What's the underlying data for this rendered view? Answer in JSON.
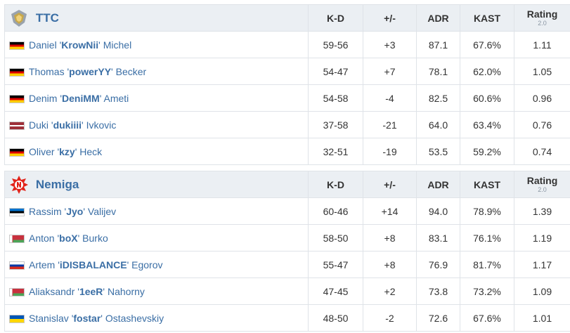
{
  "columns": {
    "kd": "K-D",
    "plus_minus": "+/-",
    "adr": "ADR",
    "kast": "KAST",
    "rating": "Rating",
    "rating_version": "2.0"
  },
  "teams": [
    {
      "name": "TTC",
      "logo_icon": "ttc-logo-icon",
      "players": [
        {
          "first": "Daniel",
          "nick": "KrowNii",
          "last": "Michel",
          "flag": "de",
          "kd": "59-56",
          "pm": "+3",
          "pm_sign": "pos",
          "adr": "87.1",
          "kast": "67.6%",
          "rating": "1.11"
        },
        {
          "first": "Thomas",
          "nick": "powerYY",
          "last": "Becker",
          "flag": "de",
          "kd": "54-47",
          "pm": "+7",
          "pm_sign": "pos",
          "adr": "78.1",
          "kast": "62.0%",
          "rating": "1.05"
        },
        {
          "first": "Denim",
          "nick": "DeniMM",
          "last": "Ameti",
          "flag": "de",
          "kd": "54-58",
          "pm": "-4",
          "pm_sign": "neg",
          "adr": "82.5",
          "kast": "60.6%",
          "rating": "0.96"
        },
        {
          "first": "Duki",
          "nick": "dukiiii",
          "last": "Ivkovic",
          "flag": "lv",
          "kd": "37-58",
          "pm": "-21",
          "pm_sign": "neg",
          "adr": "64.0",
          "kast": "63.4%",
          "rating": "0.76"
        },
        {
          "first": "Oliver",
          "nick": "kzy",
          "last": "Heck",
          "flag": "de",
          "kd": "32-51",
          "pm": "-19",
          "pm_sign": "neg",
          "adr": "53.5",
          "kast": "59.2%",
          "rating": "0.74"
        }
      ]
    },
    {
      "name": "Nemiga",
      "logo_icon": "nemiga-logo-icon",
      "players": [
        {
          "first": "Rassim",
          "nick": "Jyo",
          "last": "Valijev",
          "flag": "ee",
          "kd": "60-46",
          "pm": "+14",
          "pm_sign": "pos",
          "adr": "94.0",
          "kast": "78.9%",
          "rating": "1.39"
        },
        {
          "first": "Anton",
          "nick": "boX",
          "last": "Burko",
          "flag": "by",
          "kd": "58-50",
          "pm": "+8",
          "pm_sign": "pos",
          "adr": "83.1",
          "kast": "76.1%",
          "rating": "1.19"
        },
        {
          "first": "Artem",
          "nick": "iDISBALANCE",
          "last": "Egorov",
          "flag": "ru",
          "kd": "55-47",
          "pm": "+8",
          "pm_sign": "pos",
          "adr": "76.9",
          "kast": "81.7%",
          "rating": "1.17"
        },
        {
          "first": "Aliaksandr",
          "nick": "1eeR",
          "last": "Nahorny",
          "flag": "by",
          "kd": "47-45",
          "pm": "+2",
          "pm_sign": "pos",
          "adr": "73.8",
          "kast": "73.2%",
          "rating": "1.09"
        },
        {
          "first": "Stanislav",
          "nick": "fostar",
          "last": "Ostashevskiy",
          "flag": "ua",
          "kd": "48-50",
          "pm": "-2",
          "pm_sign": "neg",
          "adr": "72.6",
          "kast": "67.6%",
          "rating": "1.01"
        }
      ]
    }
  ]
}
